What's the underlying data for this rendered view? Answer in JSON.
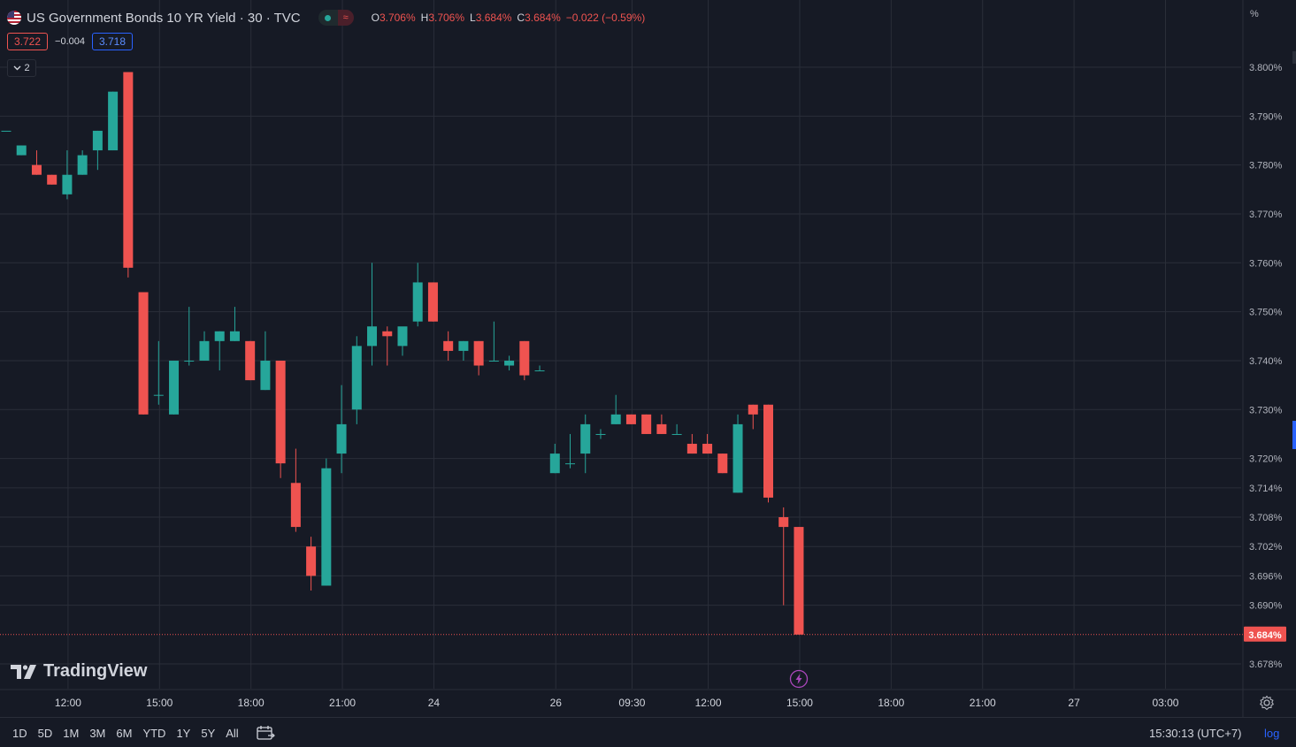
{
  "header": {
    "symbol_title": "US Government Bonds 10 YR Yield · 30 · TVC",
    "status_icon": "≈",
    "ohlc": {
      "o_label": "O",
      "o_value": "3.706%",
      "h_label": "H",
      "h_value": "3.706%",
      "l_label": "L",
      "l_value": "3.684%",
      "c_label": "C",
      "c_value": "3.684%",
      "change": "−0.022 (−0.59%)"
    },
    "bid": "3.722",
    "spread": "−0.004",
    "ask": "3.718",
    "indicators_count": "2"
  },
  "price_axis": {
    "unit": "%",
    "current_price_label": "3.684%"
  },
  "watermark": "TradingView",
  "bottom_bar": {
    "ranges": [
      "1D",
      "5D",
      "1M",
      "3M",
      "6M",
      "YTD",
      "1Y",
      "5Y",
      "All"
    ],
    "clock": "15:30:13 (UTC+7)",
    "log_label": "log"
  },
  "colors": {
    "background": "#161a25",
    "grid": "#2a2e39",
    "up": "#26a69a",
    "down": "#ef5350",
    "accent": "#2962ff",
    "text": "#d1d4dc"
  },
  "icons": [
    "us-flag-icon",
    "status-dot-icon",
    "chevron-down-icon",
    "calendar-range-icon",
    "gear-icon",
    "lightning-icon",
    "tradingview-logo-icon"
  ],
  "chart_data": {
    "type": "candlestick",
    "title": "US Government Bonds 10 YR Yield · 30 · TVC",
    "xlabel": "",
    "ylabel": "%",
    "ylim": [
      3.674,
      3.808
    ],
    "grid": true,
    "y_ticks": [
      "3.678%",
      "3.690%",
      "3.696%",
      "3.702%",
      "3.708%",
      "3.714%",
      "3.720%",
      "3.730%",
      "3.740%",
      "3.750%",
      "3.760%",
      "3.770%",
      "3.780%",
      "3.790%",
      "3.800%"
    ],
    "y_tick_values": [
      3.678,
      3.69,
      3.696,
      3.702,
      3.708,
      3.714,
      3.72,
      3.73,
      3.74,
      3.75,
      3.76,
      3.77,
      3.78,
      3.79,
      3.8
    ],
    "x_ticks": [
      "12:00",
      "15:00",
      "18:00",
      "21:00",
      "24",
      "26",
      "09:30",
      "12:00",
      "15:00",
      "18:00",
      "21:00",
      "27",
      "03:00"
    ],
    "x_tick_bar_index": [
      4,
      10,
      16,
      22,
      28,
      36,
      41,
      46,
      52,
      58,
      64,
      70,
      76
    ],
    "last_price": 3.684,
    "candles": [
      {
        "o": 3.787,
        "h": 3.787,
        "l": 3.787,
        "c": 3.787
      },
      {
        "o": 3.782,
        "h": 3.784,
        "l": 3.782,
        "c": 3.784
      },
      {
        "o": 3.78,
        "h": 3.783,
        "l": 3.778,
        "c": 3.778
      },
      {
        "o": 3.778,
        "h": 3.778,
        "l": 3.776,
        "c": 3.776
      },
      {
        "o": 3.774,
        "h": 3.783,
        "l": 3.773,
        "c": 3.778
      },
      {
        "o": 3.778,
        "h": 3.783,
        "l": 3.778,
        "c": 3.782
      },
      {
        "o": 3.783,
        "h": 3.787,
        "l": 3.779,
        "c": 3.787
      },
      {
        "o": 3.783,
        "h": 3.795,
        "l": 3.783,
        "c": 3.795
      },
      {
        "o": 3.799,
        "h": 3.799,
        "l": 3.757,
        "c": 3.759
      },
      {
        "o": 3.754,
        "h": 3.754,
        "l": 3.729,
        "c": 3.729
      },
      {
        "o": 3.733,
        "h": 3.744,
        "l": 3.731,
        "c": 3.733
      },
      {
        "o": 3.729,
        "h": 3.74,
        "l": 3.729,
        "c": 3.74
      },
      {
        "o": 3.74,
        "h": 3.751,
        "l": 3.739,
        "c": 3.74
      },
      {
        "o": 3.74,
        "h": 3.746,
        "l": 3.74,
        "c": 3.744
      },
      {
        "o": 3.744,
        "h": 3.746,
        "l": 3.738,
        "c": 3.746
      },
      {
        "o": 3.744,
        "h": 3.751,
        "l": 3.744,
        "c": 3.746
      },
      {
        "o": 3.744,
        "h": 3.744,
        "l": 3.736,
        "c": 3.736
      },
      {
        "o": 3.734,
        "h": 3.746,
        "l": 3.734,
        "c": 3.74
      },
      {
        "o": 3.74,
        "h": 3.74,
        "l": 3.716,
        "c": 3.719
      },
      {
        "o": 3.715,
        "h": 3.722,
        "l": 3.705,
        "c": 3.706
      },
      {
        "o": 3.702,
        "h": 3.704,
        "l": 3.693,
        "c": 3.696
      },
      {
        "o": 3.694,
        "h": 3.72,
        "l": 3.694,
        "c": 3.718
      },
      {
        "o": 3.721,
        "h": 3.735,
        "l": 3.717,
        "c": 3.727
      },
      {
        "o": 3.73,
        "h": 3.745,
        "l": 3.727,
        "c": 3.743
      },
      {
        "o": 3.743,
        "h": 3.76,
        "l": 3.739,
        "c": 3.747
      },
      {
        "o": 3.746,
        "h": 3.747,
        "l": 3.739,
        "c": 3.745
      },
      {
        "o": 3.743,
        "h": 3.746,
        "l": 3.741,
        "c": 3.747
      },
      {
        "o": 3.748,
        "h": 3.76,
        "l": 3.747,
        "c": 3.756
      },
      {
        "o": 3.756,
        "h": 3.756,
        "l": 3.748,
        "c": 3.748
      },
      {
        "o": 3.744,
        "h": 3.746,
        "l": 3.74,
        "c": 3.742
      },
      {
        "o": 3.742,
        "h": 3.744,
        "l": 3.74,
        "c": 3.744
      },
      {
        "o": 3.744,
        "h": 3.744,
        "l": 3.737,
        "c": 3.739
      },
      {
        "o": 3.74,
        "h": 3.748,
        "l": 3.74,
        "c": 3.74
      },
      {
        "o": 3.739,
        "h": 3.741,
        "l": 3.738,
        "c": 3.74
      },
      {
        "o": 3.744,
        "h": 3.744,
        "l": 3.736,
        "c": 3.737
      },
      {
        "o": 3.738,
        "h": 3.739,
        "l": 3.738,
        "c": 3.738
      },
      {
        "o": 3.717,
        "h": 3.723,
        "l": 3.717,
        "c": 3.721
      },
      {
        "o": 3.719,
        "h": 3.725,
        "l": 3.718,
        "c": 3.719
      },
      {
        "o": 3.721,
        "h": 3.729,
        "l": 3.717,
        "c": 3.727
      },
      {
        "o": 3.725,
        "h": 3.726,
        "l": 3.724,
        "c": 3.725
      },
      {
        "o": 3.727,
        "h": 3.733,
        "l": 3.727,
        "c": 3.729
      },
      {
        "o": 3.729,
        "h": 3.729,
        "l": 3.727,
        "c": 3.727
      },
      {
        "o": 3.729,
        "h": 3.729,
        "l": 3.725,
        "c": 3.725
      },
      {
        "o": 3.727,
        "h": 3.729,
        "l": 3.725,
        "c": 3.725
      },
      {
        "o": 3.725,
        "h": 3.727,
        "l": 3.725,
        "c": 3.725
      },
      {
        "o": 3.723,
        "h": 3.725,
        "l": 3.721,
        "c": 3.721
      },
      {
        "o": 3.723,
        "h": 3.725,
        "l": 3.721,
        "c": 3.721
      },
      {
        "o": 3.721,
        "h": 3.721,
        "l": 3.717,
        "c": 3.717
      },
      {
        "o": 3.713,
        "h": 3.729,
        "l": 3.713,
        "c": 3.727
      },
      {
        "o": 3.731,
        "h": 3.731,
        "l": 3.726,
        "c": 3.729
      },
      {
        "o": 3.731,
        "h": 3.731,
        "l": 3.711,
        "c": 3.712
      },
      {
        "o": 3.708,
        "h": 3.71,
        "l": 3.69,
        "c": 3.706
      },
      {
        "o": 3.706,
        "h": 3.706,
        "l": 3.684,
        "c": 3.684
      }
    ]
  }
}
